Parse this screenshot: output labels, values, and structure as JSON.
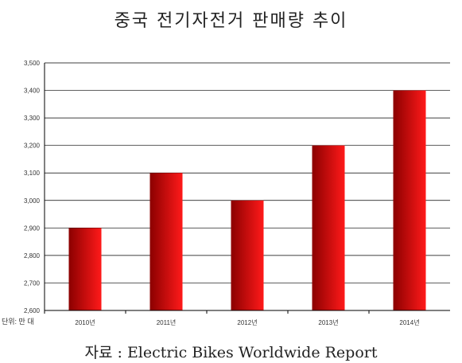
{
  "title": "중국 전기자전거 판매량 추이",
  "source": "자료 : Electric Bikes Worldwide Report",
  "unit_label": "단위: 만 대",
  "colors": {
    "bar_dark": "#8b0000",
    "bar_light": "#ff1a1a",
    "grid": "#000000"
  },
  "chart_data": {
    "type": "bar",
    "categories": [
      "2010년",
      "2011년",
      "2012년",
      "2013년",
      "2014년"
    ],
    "values": [
      2900,
      3100,
      3000,
      3200,
      3400
    ],
    "ylim": [
      2600,
      3500
    ],
    "yticks": [
      2600,
      2700,
      2800,
      2900,
      3000,
      3100,
      3200,
      3300,
      3400,
      3500
    ],
    "ytick_labels": [
      "2,600",
      "2,700",
      "2,800",
      "2,900",
      "3,000",
      "3,100",
      "3,200",
      "3,300",
      "3,400",
      "3,500"
    ],
    "grid": true,
    "legend": false
  }
}
